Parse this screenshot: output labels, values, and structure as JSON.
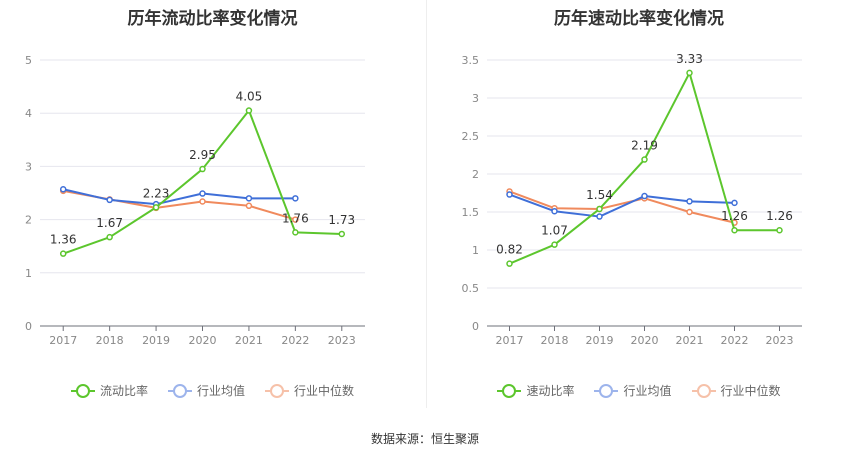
{
  "source": "数据来源：恒生聚源",
  "chart_data": [
    {
      "type": "line",
      "title": "历年流动比率变化情况",
      "categories": [
        "2017",
        "2018",
        "2019",
        "2020",
        "2021",
        "2022",
        "2023"
      ],
      "ylim": [
        0,
        5
      ],
      "yticks": [
        "0",
        "1",
        "2",
        "3",
        "4",
        "5"
      ],
      "yticks_values": [
        0,
        1,
        2,
        3,
        4,
        5
      ],
      "series": [
        {
          "name": "流动比率",
          "color": "#5cc62d",
          "values": [
            1.36,
            1.67,
            2.23,
            2.95,
            4.05,
            1.76,
            1.73
          ],
          "labels": [
            "1.36",
            "1.67",
            "2.23",
            "2.95",
            "4.05",
            "1.76",
            "1.73"
          ]
        },
        {
          "name": "行业均值",
          "color": "#3f6fd8",
          "values": [
            2.57,
            2.37,
            2.29,
            2.49,
            2.4,
            2.4,
            null
          ]
        },
        {
          "name": "行业中位数",
          "color": "#f08a5d",
          "values": [
            2.54,
            2.38,
            2.22,
            2.34,
            2.26,
            2.0,
            null
          ]
        }
      ]
    },
    {
      "type": "line",
      "title": "历年速动比率变化情况",
      "categories": [
        "2017",
        "2018",
        "2019",
        "2020",
        "2021",
        "2022",
        "2023"
      ],
      "ylim": [
        0,
        3.5
      ],
      "yticks": [
        "0",
        "0.5",
        "1",
        "1.5",
        "2",
        "2.5",
        "3",
        "3.5"
      ],
      "yticks_values": [
        0,
        0.5,
        1,
        1.5,
        2,
        2.5,
        3,
        3.5
      ],
      "series": [
        {
          "name": "速动比率",
          "color": "#5cc62d",
          "values": [
            0.82,
            1.07,
            1.54,
            2.19,
            3.33,
            1.26,
            1.26
          ],
          "labels": [
            "0.82",
            "1.07",
            "1.54",
            "2.19",
            "3.33",
            "1.26",
            "1.26"
          ]
        },
        {
          "name": "行业均值",
          "color": "#3f6fd8",
          "values": [
            1.73,
            1.51,
            1.44,
            1.71,
            1.64,
            1.62,
            null
          ]
        },
        {
          "name": "行业中位数",
          "color": "#f08a5d",
          "values": [
            1.77,
            1.55,
            1.54,
            1.68,
            1.5,
            1.36,
            null
          ]
        }
      ]
    }
  ]
}
